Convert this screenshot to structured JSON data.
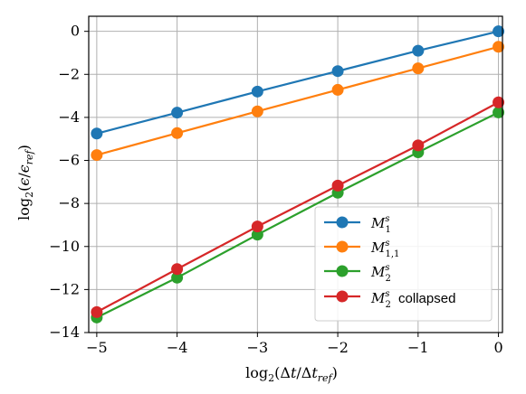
{
  "chart_data": {
    "type": "line",
    "xlabel": "log₂(Δt/Δt_ref)",
    "ylabel": "log₂(ε/ε_ref)",
    "x": [
      -5,
      -4,
      -3,
      -2,
      -1,
      0
    ],
    "xlim": [
      -5.1,
      0.05
    ],
    "ylim": [
      -14,
      0.7
    ],
    "xticks": [
      -5,
      -4,
      -3,
      -2,
      -1,
      0
    ],
    "yticks": [
      -14,
      -12,
      -10,
      -8,
      -6,
      -4,
      -2,
      0
    ],
    "xtick_labels": [
      "−5",
      "−4",
      "−3",
      "−2",
      "−1",
      "0"
    ],
    "ytick_labels": [
      "−14",
      "−12",
      "−10",
      "−8",
      "−6",
      "−4",
      "−2",
      "0"
    ],
    "grid": true,
    "legend_position": "lower-right",
    "series": [
      {
        "name": "M_1^s",
        "color": "#1f77b4",
        "values": [
          -4.75,
          -3.78,
          -2.8,
          -1.85,
          -0.9,
          0.0
        ]
      },
      {
        "name": "M_{1,1}^s",
        "color": "#ff7f0e",
        "values": [
          -5.75,
          -4.73,
          -3.72,
          -2.72,
          -1.72,
          -0.72
        ]
      },
      {
        "name": "M_2^s",
        "color": "#2ca02c",
        "values": [
          -13.3,
          -11.45,
          -9.45,
          -7.5,
          -5.62,
          -3.77
        ]
      },
      {
        "name": "M_2^s collapsed",
        "color": "#d62728",
        "values": [
          -13.05,
          -11.05,
          -9.07,
          -7.17,
          -5.3,
          -3.3
        ]
      }
    ]
  }
}
